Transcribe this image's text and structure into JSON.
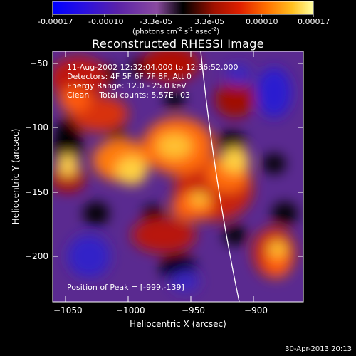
{
  "colorbar": {
    "ticks": [
      "-0.00017",
      "-0.00010",
      "-3.3e-05",
      "3.3e-05",
      "0.00010",
      "0.00017"
    ],
    "unit_main": "(photons cm",
    "unit_s": "s",
    "unit_asec": "asec",
    "unit_exp1": "-2",
    "unit_exp2": "-1",
    "unit_exp3": "-2",
    "unit_close": ")"
  },
  "plot": {
    "title": "Reconstructed RHESSI Image",
    "info_lines": [
      "11-Aug-2002 12:32:04.000 to 12:36:52.000",
      "Detectors: 4F 5F 6F 7F 8F, Att 0",
      "Energy Range: 12.0 - 25.0 keV",
      "Clean    Total counts: 5.57E+03"
    ],
    "peak_text": "Position of Peak = [-999,-139]",
    "xlabel": "Heliocentric X (arcsec)",
    "ylabel": "Heliocentric Y (arcsec)",
    "x_ticks": [
      "−1050",
      "−1000",
      "−950",
      "−900"
    ],
    "y_ticks": [
      "−50",
      "−100",
      "−150",
      "−200"
    ],
    "x_range": [
      -1065,
      -865
    ],
    "y_range": [
      -235,
      -40
    ]
  },
  "timestamp": "30-Apr-2013 20:13"
}
